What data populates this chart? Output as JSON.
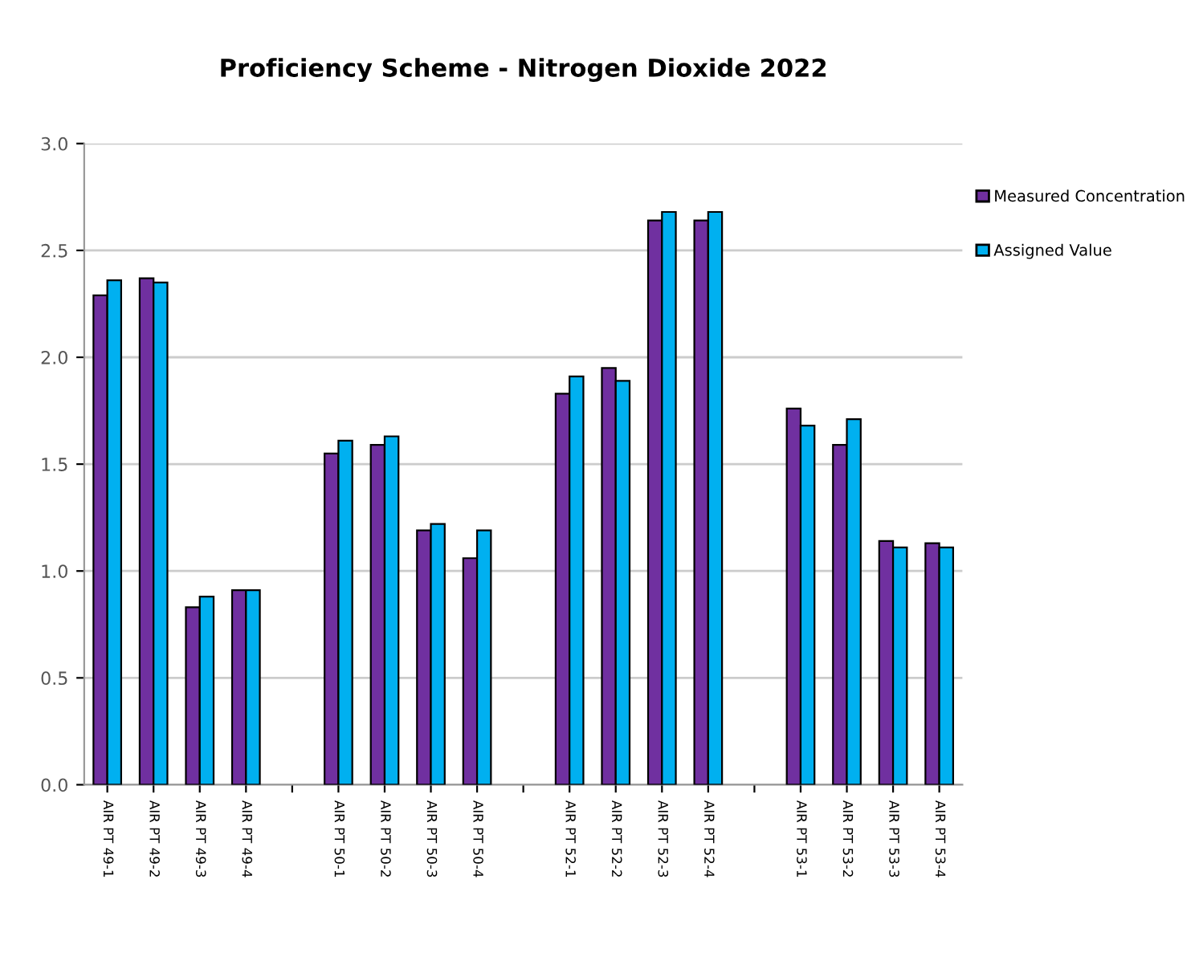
{
  "chart_data": {
    "type": "bar",
    "title": "Proficiency Scheme - Nitrogen Dioxide 2022",
    "categories": [
      "AIR PT 49-1",
      "AIR PT 49-2",
      "AIR PT 49-3",
      "AIR PT 49-4",
      null,
      "AIR PT 50-1",
      "AIR PT 50-2",
      "AIR PT 50-3",
      "AIR PT 50-4",
      null,
      "AIR PT 52-1",
      "AIR PT 52-2",
      "AIR PT 52-3",
      "AIR PT 52-4",
      null,
      "AIR PT 53-1",
      "AIR PT 53-2",
      "AIR PT 53-3",
      "AIR PT 53-4"
    ],
    "series": [
      {
        "name": "Measured Concentration",
        "color": "#7030a0",
        "values": [
          2.29,
          2.37,
          0.83,
          0.91,
          null,
          1.55,
          1.59,
          1.19,
          1.06,
          null,
          1.83,
          1.95,
          2.64,
          2.64,
          null,
          1.76,
          1.59,
          1.14,
          1.13
        ]
      },
      {
        "name": "Assigned Value",
        "color": "#00b0f0",
        "values": [
          2.36,
          2.35,
          0.88,
          0.91,
          null,
          1.61,
          1.63,
          1.22,
          1.19,
          null,
          1.91,
          1.89,
          2.68,
          2.68,
          null,
          1.68,
          1.71,
          1.11,
          1.11
        ]
      }
    ],
    "ylim": [
      0,
      3.0
    ],
    "yticks": [
      {
        "value": 0,
        "label": "0.0"
      },
      0.5,
      {
        "value": 1,
        "label": "1.0"
      },
      1.5,
      {
        "value": 2,
        "label": "2.0"
      },
      2.5,
      {
        "value": 3,
        "label": "3.0"
      }
    ],
    "grid": "y",
    "legend": "top right"
  }
}
